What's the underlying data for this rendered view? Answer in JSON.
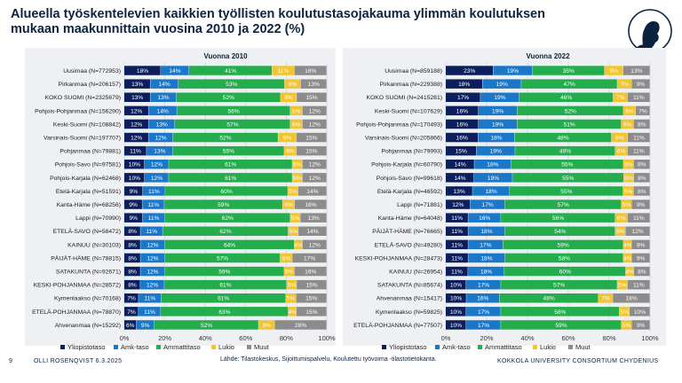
{
  "title": "Alueella työskentelevien kaikkien työllisten koulutustasojakauma ylimmän koulutuksen mukaan maakunnittain vuosina 2010 ja 2022 (%)",
  "footer": {
    "page": "9",
    "author": "OLLI ROSENQVIST 6.3.2025",
    "source": "Lähde: Tilastokeskus, Sijoittumispalvelu, Koulutettu työvoima -tilastotietokanta.",
    "org": "KOKKOLA UNIVERSITY CONSORTIUM CHYDENIUS"
  },
  "colors": {
    "Yliopistotaso": "#0c1f5c",
    "Amk-taso": "#1b78c8",
    "Ammattitaso": "#23ad4d",
    "Lukio": "#f2c530",
    "Muut": "#8c8c8c"
  },
  "chart_data": [
    {
      "type": "bar",
      "stacked": true,
      "orientation": "horizontal",
      "title": "Vuonna 2010",
      "x_ticks": [
        "0%",
        "20%",
        "40%",
        "60%",
        "80%",
        "100%"
      ],
      "xlim": [
        0,
        100
      ],
      "legend_position": "bottom",
      "series_names": [
        "Yliopistotaso",
        "Amk-taso",
        "Ammattitaso",
        "Lukio",
        "Muut"
      ],
      "categories": [
        {
          "label": "Uusimaa (N=772953)",
          "values": [
            18,
            14,
            41,
            11,
            16
          ]
        },
        {
          "label": "Pirkanmaa (N=206157)",
          "values": [
            13,
            14,
            53,
            8,
            13
          ]
        },
        {
          "label": "KOKO SUOMI (N=2325679)",
          "values": [
            13,
            13,
            52,
            8,
            15
          ]
        },
        {
          "label": "Pohjois-Pohjanmaa (N=156290)",
          "values": [
            12,
            14,
            56,
            6,
            12
          ]
        },
        {
          "label": "Keski-Suomi (N=108842)",
          "values": [
            12,
            13,
            57,
            6,
            12
          ]
        },
        {
          "label": "Varsinais-Suomi (N=197707)",
          "values": [
            12,
            12,
            52,
            9,
            15
          ]
        },
        {
          "label": "Pohjanmaa (N=79881)",
          "values": [
            11,
            13,
            55,
            6,
            15
          ]
        },
        {
          "label": "Pohjois-Savo (N=97581)",
          "values": [
            10,
            12,
            61,
            5,
            12
          ]
        },
        {
          "label": "Pohjois-Karjala (N=62468)",
          "values": [
            10,
            12,
            61,
            5,
            12
          ]
        },
        {
          "label": "Etelä-Karjala (N=51591)",
          "values": [
            9,
            11,
            60,
            5,
            14
          ]
        },
        {
          "label": "Kanta-Häme (N=68256)",
          "values": [
            9,
            11,
            59,
            6,
            16
          ]
        },
        {
          "label": "Lappi (N=70990)",
          "values": [
            9,
            11,
            62,
            5,
            13
          ]
        },
        {
          "label": "ETELÄ-SAVO (N=58472)",
          "values": [
            8,
            11,
            62,
            5,
            14
          ]
        },
        {
          "label": "KAINUU (N=30103)",
          "values": [
            8,
            12,
            64,
            4,
            12
          ]
        },
        {
          "label": "PÄIJÄT-HÄME (N=78815)",
          "values": [
            8,
            12,
            57,
            6,
            17
          ]
        },
        {
          "label": "SATAKUNTA (N=92671)",
          "values": [
            8,
            12,
            59,
            5,
            16
          ]
        },
        {
          "label": "KESKI-POHJANMAA (N=28572)",
          "values": [
            8,
            12,
            61,
            5,
            15
          ]
        },
        {
          "label": "Kymenlaakso (N=70168)",
          "values": [
            7,
            11,
            61,
            5,
            15
          ]
        },
        {
          "label": "ETELÄ-POHJANMAA (N=78870)",
          "values": [
            7,
            11,
            63,
            4,
            15
          ]
        },
        {
          "label": "Ahvenanmaa (N=15292)",
          "values": [
            6,
            9,
            52,
            8,
            26
          ]
        }
      ]
    },
    {
      "type": "bar",
      "stacked": true,
      "orientation": "horizontal",
      "title": "Vuonna 2022",
      "x_ticks": [
        "0%",
        "20%",
        "40%",
        "60%",
        "80%",
        "100%"
      ],
      "xlim": [
        0,
        100
      ],
      "legend_position": "bottom",
      "series_names": [
        "Yliopistotaso",
        "Amk-taso",
        "Ammattitaso",
        "Lukio",
        "Muut"
      ],
      "categories": [
        {
          "label": "Uusimaa (N=859188)",
          "values": [
            23,
            19,
            35,
            9,
            13
          ]
        },
        {
          "label": "Pirkanmaa (N=229388)",
          "values": [
            18,
            19,
            47,
            7,
            9
          ]
        },
        {
          "label": "KOKO SUOMI (N=2415281)",
          "values": [
            17,
            19,
            46,
            7,
            11
          ]
        },
        {
          "label": "Keski-Suomi (N=107629)",
          "values": [
            16,
            19,
            52,
            6,
            7
          ]
        },
        {
          "label": "Pohjois-Pohjanmaa (N=170493)",
          "values": [
            16,
            19,
            51,
            6,
            8
          ]
        },
        {
          "label": "Varsinais-Suomi (N=205866)",
          "values": [
            16,
            18,
            48,
            8,
            11
          ]
        },
        {
          "label": "Pohjanmaa (N=79993)",
          "values": [
            15,
            19,
            49,
            6,
            11
          ]
        },
        {
          "label": "Pohjois-Karjala (N=60790)",
          "values": [
            14,
            18,
            55,
            5,
            8
          ]
        },
        {
          "label": "Pohjois-Savo (N=99618)",
          "values": [
            14,
            19,
            55,
            5,
            8
          ]
        },
        {
          "label": "Etelä-Karjala (N=46592)",
          "values": [
            13,
            18,
            55,
            5,
            8
          ]
        },
        {
          "label": "Lappi (N=71881)",
          "values": [
            12,
            17,
            57,
            5,
            9
          ]
        },
        {
          "label": "Kanta-Häme (N=64048)",
          "values": [
            11,
            16,
            56,
            6,
            11
          ]
        },
        {
          "label": "PÄIJÄT-HÄME (N=76665)",
          "values": [
            11,
            18,
            54,
            5,
            12
          ]
        },
        {
          "label": "ETELÄ-SAVO (N=49280)",
          "values": [
            11,
            17,
            59,
            4,
            9
          ]
        },
        {
          "label": "KESKI-POHJANMAA (N=28473)",
          "values": [
            11,
            18,
            58,
            4,
            9
          ]
        },
        {
          "label": "KAINUU (N=26954)",
          "values": [
            11,
            18,
            60,
            4,
            8
          ]
        },
        {
          "label": "SATAKUNTA (N=85674)",
          "values": [
            10,
            17,
            57,
            5,
            11
          ]
        },
        {
          "label": "Ahvenanmaa (N=15417)",
          "values": [
            10,
            16,
            48,
            7,
            18
          ]
        },
        {
          "label": "Kymenlaakso (N=59825)",
          "values": [
            10,
            17,
            58,
            5,
            10
          ]
        },
        {
          "label": "ETELÄ-POHJANMAA (N=77507)",
          "values": [
            10,
            17,
            59,
            5,
            9
          ]
        }
      ]
    }
  ]
}
